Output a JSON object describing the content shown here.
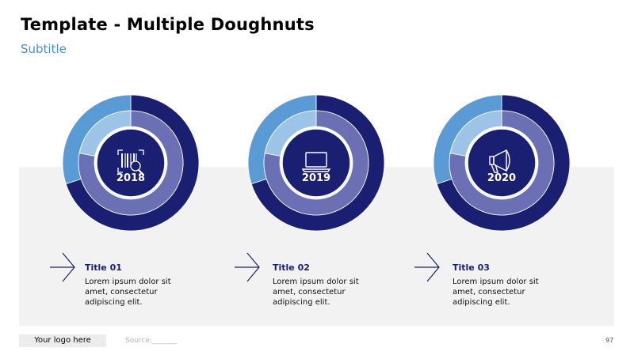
{
  "page": {
    "title": "Template - Multiple Doughnuts",
    "subtitle": "Subtitle"
  },
  "colors": {
    "outer_main": "#1a1f71",
    "outer_rest": "#5b9bd5",
    "inner_main": "#6b70b4",
    "inner_rest": "#9dc3e6",
    "center": "#1a1f71",
    "band": "#f2f2f2"
  },
  "chart_data": [
    {
      "type": "doughnut",
      "center_label": "2018",
      "center_icon": "barcode-search-icon",
      "rings": [
        {
          "ring": "outer",
          "values": [
            70,
            30
          ]
        },
        {
          "ring": "inner",
          "values": [
            78,
            22
          ]
        }
      ]
    },
    {
      "type": "doughnut",
      "center_label": "2019",
      "center_icon": "laptop-icon",
      "rings": [
        {
          "ring": "outer",
          "values": [
            70,
            30
          ]
        },
        {
          "ring": "inner",
          "values": [
            78,
            22
          ]
        }
      ]
    },
    {
      "type": "doughnut",
      "center_label": "2020",
      "center_icon": "megaphone-icon",
      "rings": [
        {
          "ring": "outer",
          "values": [
            70,
            30
          ]
        },
        {
          "ring": "inner",
          "values": [
            78,
            22
          ]
        }
      ]
    }
  ],
  "columns": [
    {
      "title": "Title 01",
      "lines": [
        "Lorem ipsum dolor sit",
        "amet, consectetur",
        "adipiscing elit."
      ]
    },
    {
      "title": "Title 02",
      "lines": [
        "Lorem ipsum dolor sit",
        "amet, consectetur",
        "adipiscing elit."
      ]
    },
    {
      "title": "Title 03",
      "lines": [
        "Lorem ipsum dolor sit",
        "amet, consectetur",
        "adipiscing elit."
      ]
    }
  ],
  "footer": {
    "logo": "Your logo here",
    "source": "Source:_______",
    "page_number": "97"
  }
}
